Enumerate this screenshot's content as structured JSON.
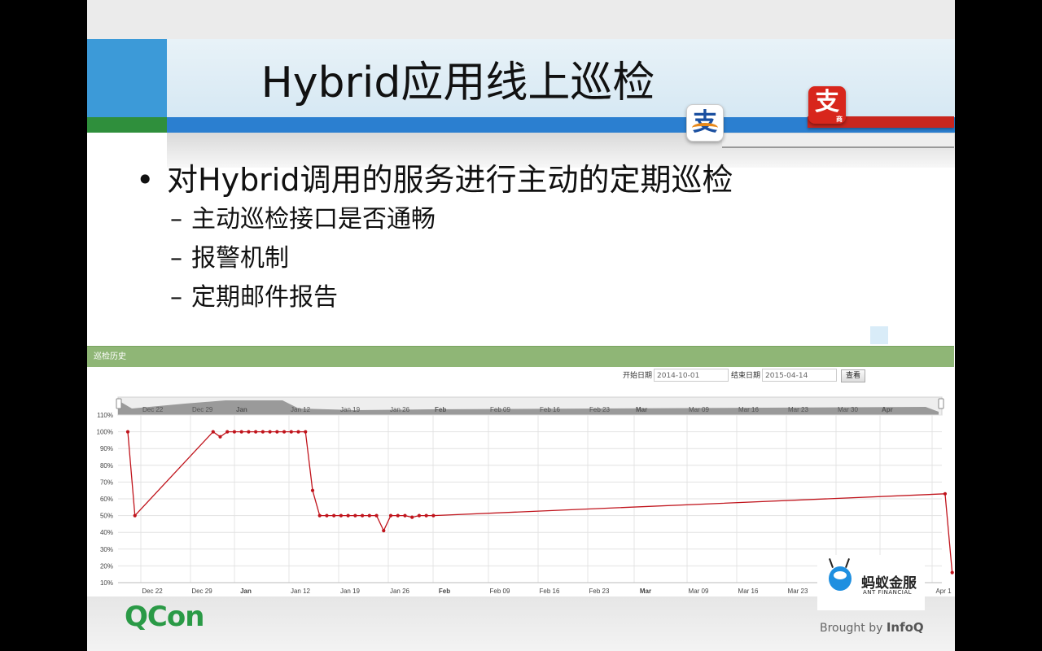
{
  "slide": {
    "title": "Hybrid应用线上巡检",
    "bullet_main": "对Hybrid调用的服务进行主动的定期巡检",
    "sub_bullets": [
      "主动巡检接口是否通畅",
      "报警机制",
      "定期邮件报告"
    ],
    "bullet_symbol": "•",
    "dash_symbol": "–"
  },
  "logos": {
    "alipay_red_glyph": "支",
    "alipay_red_small": "商",
    "alipay_white_glyph": "支",
    "qcon": "QCon",
    "brought_by": "Brought by",
    "infoq": "InfoQ",
    "ant_cn": "蚂蚁金服",
    "ant_en": "ANT FINANCIAL"
  },
  "panel": {
    "header": "巡检历史",
    "start_label": "开始日期",
    "start_value": "2014-10-01",
    "end_label": "结束日期",
    "end_value": "2015-04-14",
    "query_button": "查看"
  },
  "colors": {
    "line": "#c0141c",
    "header_green": "#8fb676",
    "navigator_fill": "#9a9a9a"
  },
  "chart_data": {
    "type": "line",
    "x_tick_labels": [
      "Dec 22",
      "Dec 29",
      "Jan",
      "Jan 12",
      "Jan 19",
      "Jan 26",
      "Feb",
      "Feb 09",
      "Feb 16",
      "Feb 23",
      "Mar",
      "Mar 09",
      "Mar 16",
      "Mar 23",
      "Mar 30",
      "Apr",
      "Apr 1"
    ],
    "x_tick_bold": [
      "Jan",
      "Feb",
      "Mar",
      "Apr"
    ],
    "y_tick_labels": [
      "110%",
      "100%",
      "90%",
      "80%",
      "70%",
      "60%",
      "50%",
      "40%",
      "30%",
      "20%",
      "10%"
    ],
    "ylim": [
      10,
      110
    ],
    "grid": true,
    "series": [
      {
        "x": [
          "2014-12-18",
          "2014-12-19",
          "2014-12-30",
          "2014-12-31",
          "2015-01-01",
          "2015-01-02",
          "2015-01-03",
          "2015-01-04",
          "2015-01-05",
          "2015-01-06",
          "2015-01-07",
          "2015-01-08",
          "2015-01-09",
          "2015-01-10",
          "2015-01-11",
          "2015-01-12",
          "2015-01-13",
          "2015-01-14",
          "2015-01-15",
          "2015-01-16",
          "2015-01-17",
          "2015-01-18",
          "2015-01-19",
          "2015-01-20",
          "2015-01-21",
          "2015-01-22",
          "2015-01-23",
          "2015-01-24",
          "2015-01-25",
          "2015-01-26",
          "2015-01-27",
          "2015-01-28",
          "2015-01-29",
          "2015-01-30",
          "2015-04-12",
          "2015-04-13"
        ],
        "values": [
          100,
          50,
          100,
          97,
          100,
          100,
          100,
          100,
          100,
          100,
          100,
          100,
          100,
          100,
          100,
          100,
          65,
          50,
          50,
          50,
          50,
          50,
          50,
          50,
          50,
          50,
          41,
          50,
          50,
          50,
          49,
          50,
          50,
          50,
          63,
          16
        ]
      }
    ]
  }
}
